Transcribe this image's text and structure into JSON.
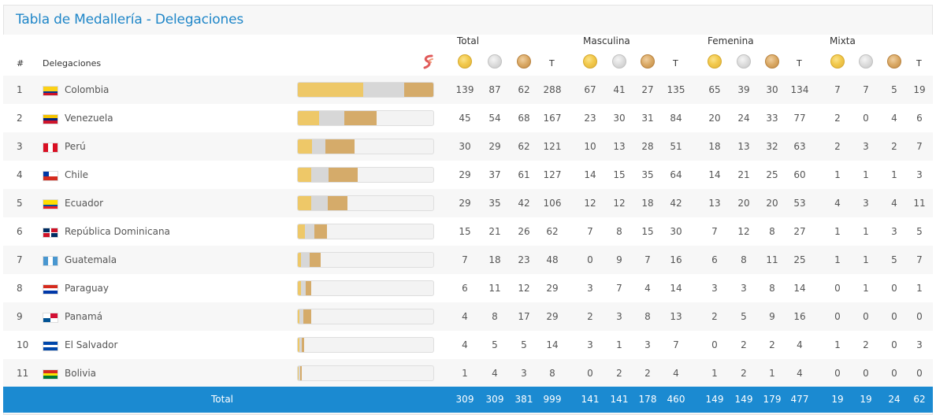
{
  "title": "Tabla de Medallería - Delegaciones",
  "header": {
    "rank": "#",
    "delegation": "Delegaciones",
    "groups": [
      "Total",
      "Masculina",
      "Femenina",
      "Mixta"
    ],
    "t_label": "T"
  },
  "rows": [
    {
      "rank": "1",
      "name": "Colombia",
      "flag": "colombia",
      "total": [
        139,
        87,
        62,
        288
      ],
      "masc": [
        67,
        41,
        27,
        135
      ],
      "fem": [
        65,
        39,
        30,
        134
      ],
      "mixta": [
        7,
        7,
        5,
        19
      ]
    },
    {
      "rank": "2",
      "name": "Venezuela",
      "flag": "venezuela",
      "total": [
        45,
        54,
        68,
        167
      ],
      "masc": [
        23,
        30,
        31,
        84
      ],
      "fem": [
        20,
        24,
        33,
        77
      ],
      "mixta": [
        2,
        0,
        4,
        6
      ]
    },
    {
      "rank": "3",
      "name": "Perú",
      "flag": "peru",
      "total": [
        30,
        29,
        62,
        121
      ],
      "masc": [
        10,
        13,
        28,
        51
      ],
      "fem": [
        18,
        13,
        32,
        63
      ],
      "mixta": [
        2,
        3,
        2,
        7
      ]
    },
    {
      "rank": "4",
      "name": "Chile",
      "flag": "chile",
      "total": [
        29,
        37,
        61,
        127
      ],
      "masc": [
        14,
        15,
        35,
        64
      ],
      "fem": [
        14,
        21,
        25,
        60
      ],
      "mixta": [
        1,
        1,
        1,
        3
      ]
    },
    {
      "rank": "5",
      "name": "Ecuador",
      "flag": "ecuador",
      "total": [
        29,
        35,
        42,
        106
      ],
      "masc": [
        12,
        12,
        18,
        42
      ],
      "fem": [
        13,
        20,
        20,
        53
      ],
      "mixta": [
        4,
        3,
        4,
        11
      ]
    },
    {
      "rank": "6",
      "name": "República Dominicana",
      "flag": "dominicana",
      "total": [
        15,
        21,
        26,
        62
      ],
      "masc": [
        7,
        8,
        15,
        30
      ],
      "fem": [
        7,
        12,
        8,
        27
      ],
      "mixta": [
        1,
        1,
        3,
        5
      ]
    },
    {
      "rank": "7",
      "name": "Guatemala",
      "flag": "guatemala",
      "total": [
        7,
        18,
        23,
        48
      ],
      "masc": [
        0,
        9,
        7,
        16
      ],
      "fem": [
        6,
        8,
        11,
        25
      ],
      "mixta": [
        1,
        1,
        5,
        7
      ]
    },
    {
      "rank": "8",
      "name": "Paraguay",
      "flag": "paraguay",
      "total": [
        6,
        11,
        12,
        29
      ],
      "masc": [
        3,
        7,
        4,
        14
      ],
      "fem": [
        3,
        3,
        8,
        14
      ],
      "mixta": [
        0,
        1,
        0,
        1
      ]
    },
    {
      "rank": "9",
      "name": "Panamá",
      "flag": "panama",
      "total": [
        4,
        8,
        17,
        29
      ],
      "masc": [
        2,
        3,
        8,
        13
      ],
      "fem": [
        2,
        5,
        9,
        16
      ],
      "mixta": [
        0,
        0,
        0,
        0
      ]
    },
    {
      "rank": "10",
      "name": "El Salvador",
      "flag": "elsalvador",
      "total": [
        4,
        5,
        5,
        14
      ],
      "masc": [
        3,
        1,
        3,
        7
      ],
      "fem": [
        0,
        2,
        2,
        4
      ],
      "mixta": [
        1,
        2,
        0,
        3
      ]
    },
    {
      "rank": "11",
      "name": "Bolivia",
      "flag": "bolivia",
      "total": [
        1,
        4,
        3,
        8
      ],
      "masc": [
        0,
        2,
        2,
        4
      ],
      "fem": [
        1,
        2,
        1,
        4
      ],
      "mixta": [
        0,
        0,
        0,
        0
      ]
    }
  ],
  "bar_scale_max": 288,
  "footer": {
    "label": "Total",
    "total": [
      309,
      309,
      381,
      999
    ],
    "masc": [
      141,
      141,
      178,
      460
    ],
    "fem": [
      149,
      149,
      179,
      477
    ],
    "mixta": [
      19,
      19,
      24,
      62
    ]
  },
  "colors": {
    "accent": "#1b8ad1",
    "title": "#1f86c8",
    "gold": "#eec868",
    "silver": "#d7d7d7",
    "bronze": "#d5ab6a"
  }
}
